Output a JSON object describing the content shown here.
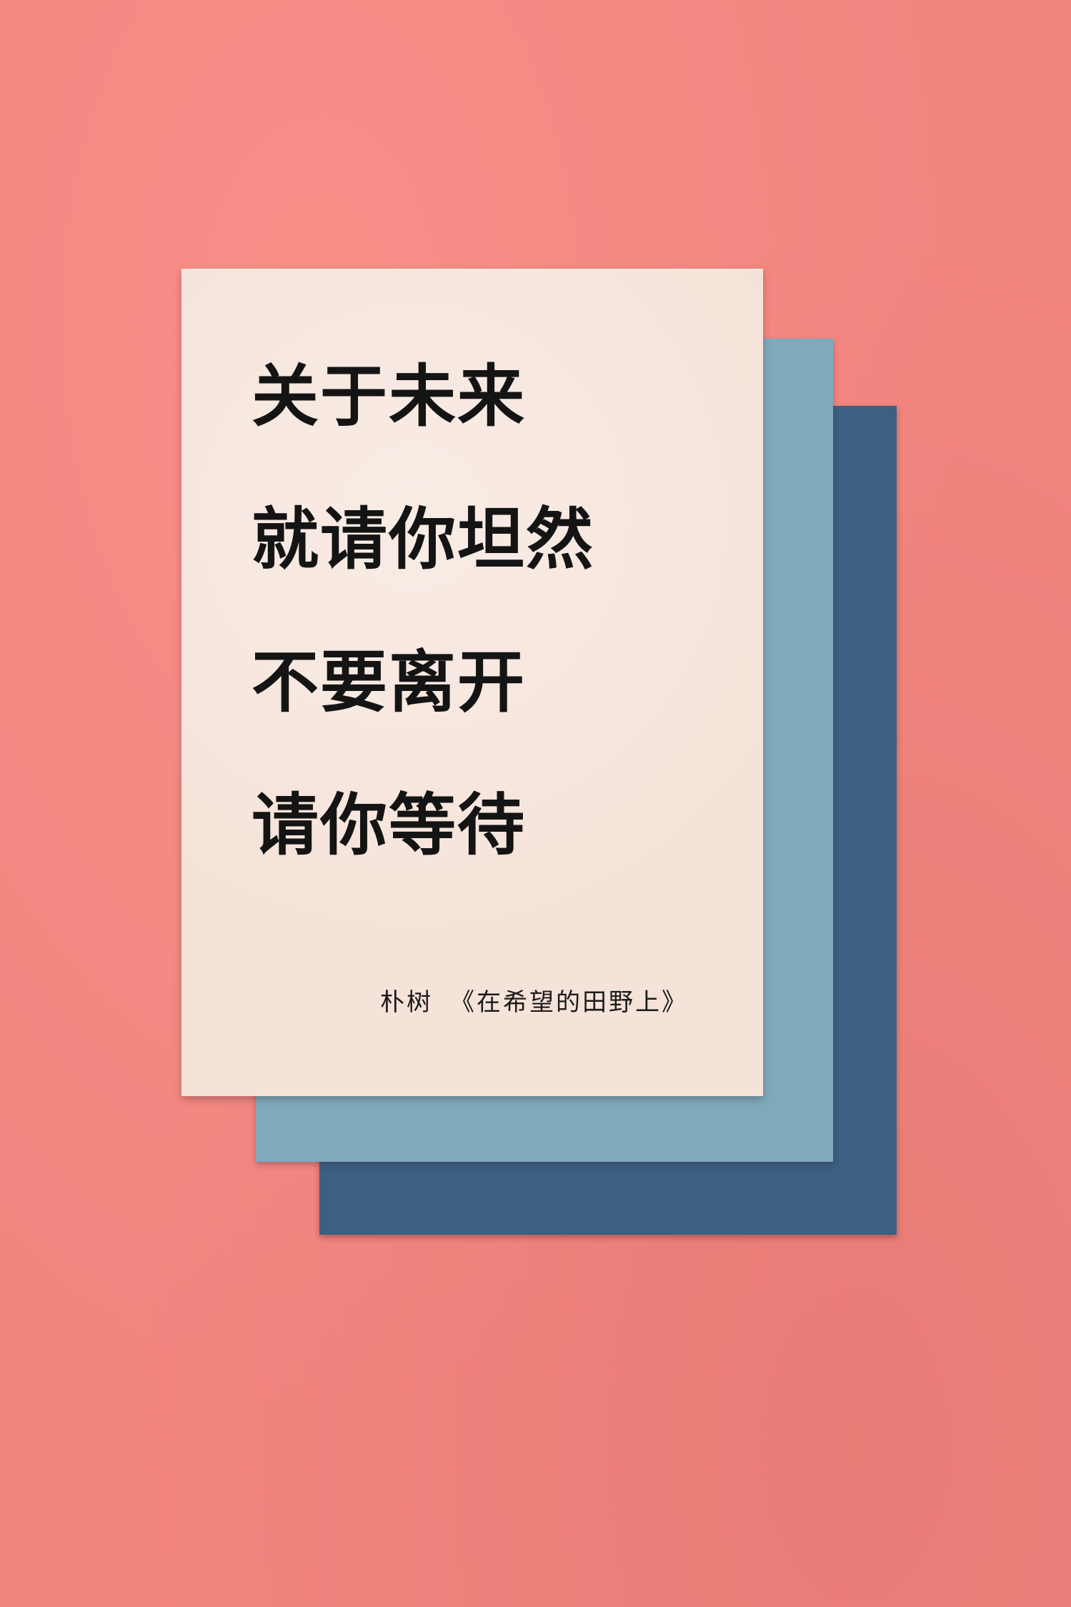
{
  "scene": {
    "background_color": "#f3857f",
    "sheet_colors": {
      "front": "#f5e2d8",
      "middle": "#7eaabb",
      "back": "#3d5f82"
    }
  },
  "poem": {
    "lines": [
      "关于未来",
      "就请你坦然",
      "不要离开",
      "请你等待"
    ]
  },
  "attribution": {
    "author": "朴树",
    "work": "《在希望的田野上》"
  }
}
